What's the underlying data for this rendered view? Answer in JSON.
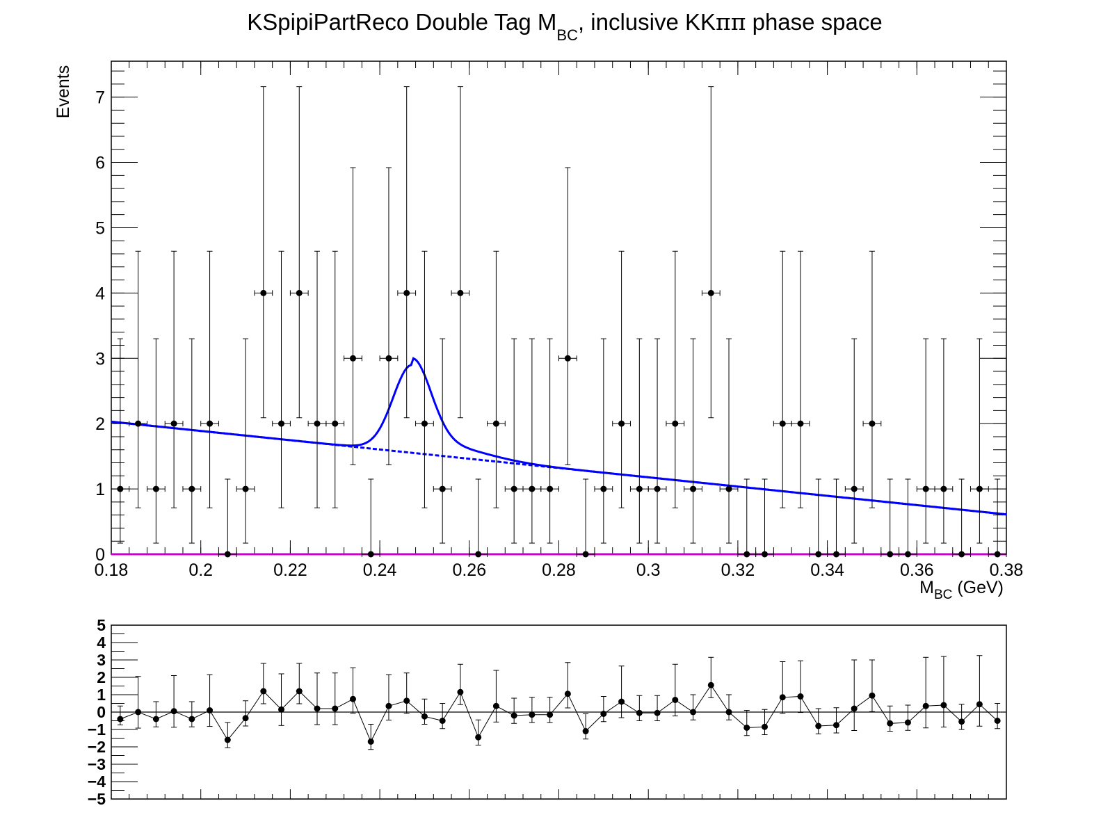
{
  "chart_data": [
    {
      "type": "scatter",
      "panel": "main",
      "title": "KSpipiPartReco Double Tag M",
      "title_sub": "BC",
      "title_suffix": ", inclusive KK",
      "title_pipi": "ππ",
      "title_end": " phase space",
      "xlabel": "M",
      "xlabel_sub": "BC",
      "xlabel_unit": " (GeV)",
      "ylabel": "Events",
      "xlim": [
        0.18,
        0.38
      ],
      "ylim": [
        0,
        7.55
      ],
      "x_ticks": [
        "0.18",
        "0.2",
        "0.22",
        "0.24",
        "0.26",
        "0.28",
        "0.3",
        "0.32",
        "0.34",
        "0.36",
        "0.38"
      ],
      "y_ticks": [
        "0",
        "1",
        "2",
        "3",
        "4",
        "5",
        "6",
        "7"
      ],
      "x": [
        0.182,
        0.186,
        0.19,
        0.194,
        0.198,
        0.202,
        0.206,
        0.21,
        0.214,
        0.218,
        0.222,
        0.226,
        0.23,
        0.234,
        0.238,
        0.242,
        0.246,
        0.25,
        0.254,
        0.258,
        0.262,
        0.266,
        0.27,
        0.274,
        0.278,
        0.282,
        0.286,
        0.29,
        0.294,
        0.298,
        0.302,
        0.306,
        0.31,
        0.314,
        0.318,
        0.322,
        0.326,
        0.33,
        0.334,
        0.338,
        0.342,
        0.346,
        0.35,
        0.354,
        0.358,
        0.362,
        0.366,
        0.37,
        0.374,
        0.378
      ],
      "series": [
        {
          "name": "data",
          "values": [
            1,
            2,
            1,
            2,
            1,
            2,
            0,
            1,
            4,
            2,
            4,
            2,
            2,
            3,
            0,
            3,
            4,
            2,
            1,
            4,
            0,
            2,
            1,
            1,
            1,
            3,
            0,
            1,
            2,
            1,
            1,
            2,
            1,
            4,
            1,
            0,
            0,
            2,
            2,
            0,
            0,
            1,
            2,
            0,
            0,
            1,
            1,
            0,
            1,
            0
          ],
          "err_low": [
            0.83,
            1.29,
            0.83,
            1.29,
            0.83,
            1.29,
            0,
            0.83,
            1.91,
            1.29,
            1.91,
            1.29,
            1.29,
            1.63,
            0,
            1.63,
            1.91,
            1.29,
            0.83,
            1.91,
            0,
            1.29,
            0.83,
            0.83,
            0.83,
            1.63,
            0,
            0.83,
            1.29,
            0.83,
            0.83,
            1.29,
            0.83,
            1.91,
            0.83,
            0,
            0,
            1.29,
            1.29,
            0,
            0,
            0.83,
            1.29,
            0,
            0,
            0.83,
            0.83,
            0,
            0.83,
            0
          ],
          "err_high": [
            2.3,
            2.64,
            2.3,
            2.64,
            2.3,
            2.64,
            1.15,
            2.3,
            3.16,
            2.64,
            3.16,
            2.64,
            2.64,
            2.92,
            1.15,
            2.92,
            3.16,
            2.64,
            2.3,
            3.16,
            1.15,
            2.64,
            2.3,
            2.3,
            2.3,
            2.92,
            1.15,
            2.3,
            2.64,
            2.3,
            2.3,
            2.64,
            2.3,
            3.16,
            2.3,
            1.15,
            1.15,
            2.64,
            2.64,
            1.15,
            1.15,
            2.3,
            2.64,
            1.15,
            1.15,
            2.3,
            2.3,
            1.15,
            2.3,
            1.15
          ],
          "color": "#000000"
        },
        {
          "name": "fit_total",
          "color": "#0000ff",
          "background_start": 2.03,
          "background_end": 0.61,
          "peak_mean": 0.2472,
          "peak_sigma": 0.0042,
          "peak_amplitude": 1.3
        },
        {
          "name": "fit_background",
          "color": "#0000ff",
          "background_start": 2.03,
          "background_end": 0.61
        },
        {
          "name": "fit_zero",
          "color": "#cc00cc"
        }
      ]
    },
    {
      "type": "line",
      "panel": "residuals",
      "xlim": [
        0.18,
        0.38
      ],
      "ylim": [
        -5,
        5
      ],
      "y_ticks": [
        "5",
        "4",
        "3",
        "2",
        "1",
        "0",
        "−1",
        "−2",
        "−3",
        "−4",
        "−5"
      ],
      "x": [
        0.182,
        0.186,
        0.19,
        0.194,
        0.198,
        0.202,
        0.206,
        0.21,
        0.214,
        0.218,
        0.222,
        0.226,
        0.23,
        0.234,
        0.238,
        0.242,
        0.246,
        0.25,
        0.254,
        0.258,
        0.262,
        0.266,
        0.27,
        0.274,
        0.278,
        0.282,
        0.286,
        0.29,
        0.294,
        0.298,
        0.302,
        0.306,
        0.31,
        0.314,
        0.318,
        0.322,
        0.326,
        0.33,
        0.334,
        0.338,
        0.342,
        0.346,
        0.35,
        0.354,
        0.358,
        0.362,
        0.366,
        0.37,
        0.374,
        0.378
      ],
      "series": [
        {
          "name": "pull",
          "values": [
            -0.4,
            0.0,
            -0.4,
            0.05,
            -0.4,
            0.1,
            -1.6,
            -0.35,
            1.2,
            0.15,
            1.2,
            0.2,
            0.2,
            0.75,
            -1.7,
            0.35,
            0.65,
            -0.25,
            -0.5,
            1.15,
            -1.45,
            0.35,
            -0.2,
            -0.15,
            -0.15,
            1.05,
            -1.1,
            -0.1,
            0.6,
            -0.05,
            -0.05,
            0.7,
            0.0,
            1.55,
            0.0,
            -0.9,
            -0.85,
            0.85,
            0.9,
            -0.8,
            -0.75,
            0.2,
            0.95,
            -0.65,
            -0.6,
            0.35,
            0.4,
            -0.55,
            0.45,
            -0.5
          ],
          "err": [
            0.75,
            2.05,
            1.0,
            2.05,
            1.0,
            2.05,
            1.0,
            1.0,
            1.6,
            2.05,
            1.6,
            2.05,
            2.05,
            1.8,
            1.0,
            1.8,
            1.6,
            1.0,
            1.0,
            1.6,
            1.0,
            2.05,
            1.0,
            1.0,
            1.0,
            1.8,
            1.0,
            1.0,
            2.05,
            1.0,
            1.0,
            2.05,
            1.0,
            1.6,
            1.0,
            1.0,
            1.0,
            2.05,
            2.05,
            1.0,
            1.0,
            2.8,
            2.05,
            1.0,
            1.0,
            2.8,
            2.8,
            1.0,
            2.8,
            1.0
          ],
          "color": "#000000"
        }
      ]
    }
  ]
}
